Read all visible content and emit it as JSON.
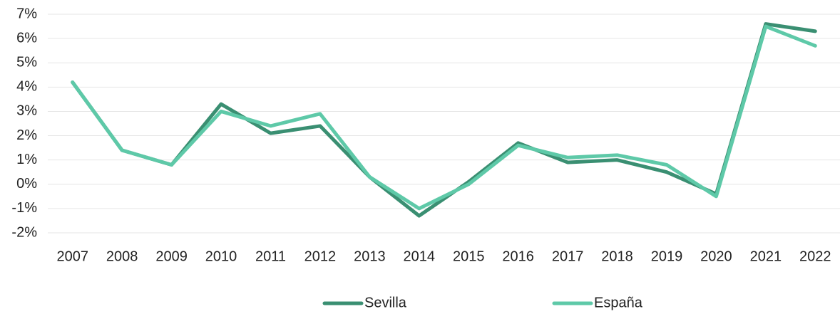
{
  "chart_data": {
    "type": "line",
    "categories": [
      "2007",
      "2008",
      "2009",
      "2010",
      "2011",
      "2012",
      "2013",
      "2014",
      "2015",
      "2016",
      "2017",
      "2018",
      "2019",
      "2020",
      "2021",
      "2022"
    ],
    "series": [
      {
        "name": "Sevilla",
        "color": "#3a8f72",
        "values": [
          4.2,
          1.4,
          0.8,
          3.3,
          2.1,
          2.4,
          0.3,
          -1.3,
          0.1,
          1.7,
          0.9,
          1.0,
          0.5,
          -0.4,
          6.6,
          6.3
        ]
      },
      {
        "name": "España",
        "color": "#5ec9a8",
        "values": [
          4.2,
          1.4,
          0.8,
          3.0,
          2.4,
          2.9,
          0.3,
          -1.0,
          0.0,
          1.6,
          1.1,
          1.2,
          0.8,
          -0.5,
          6.5,
          5.7
        ]
      }
    ],
    "ylim": [
      -2,
      7
    ],
    "yticks": [
      {
        "value": -2,
        "label": "-2%"
      },
      {
        "value": -1,
        "label": "-1%"
      },
      {
        "value": 0,
        "label": "0%"
      },
      {
        "value": 1,
        "label": "1%"
      },
      {
        "value": 2,
        "label": "2%"
      },
      {
        "value": 3,
        "label": "3%"
      },
      {
        "value": 4,
        "label": "4%"
      },
      {
        "value": 5,
        "label": "5%"
      },
      {
        "value": 6,
        "label": "6%"
      },
      {
        "value": 7,
        "label": "7%"
      }
    ],
    "grid": true,
    "legend": "bottom"
  }
}
